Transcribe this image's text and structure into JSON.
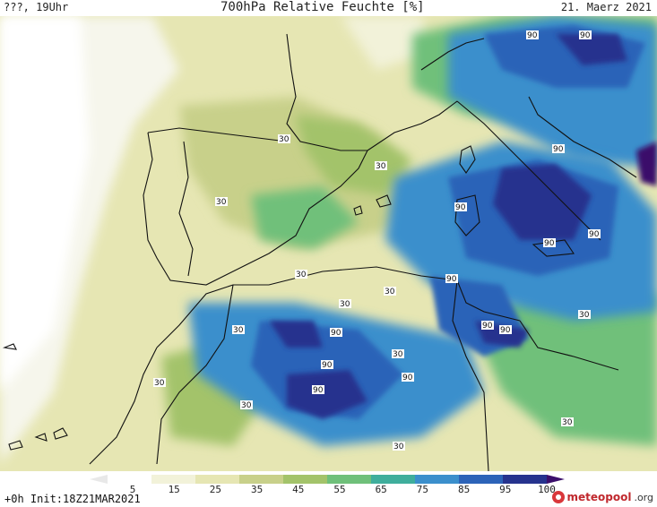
{
  "header": {
    "left": "???, 19Uhr",
    "title": "700hPa Relative Feuchte [%]",
    "date": "21. Maerz 2021"
  },
  "footer": {
    "run_info": "+0h Init:18Z21MAR2021"
  },
  "logo": {
    "brand": "meteopool",
    "tld": ".org"
  },
  "legend": {
    "ticks": [
      "5",
      "15",
      "25",
      "35",
      "45",
      "55",
      "65",
      "75",
      "85",
      "95",
      "100"
    ],
    "colors": [
      "#ffffff",
      "#f2f2d9",
      "#e6e6b3",
      "#c8d08a",
      "#a3c36a",
      "#6fc07a",
      "#3fae9c",
      "#3b8fcc",
      "#2c63b8",
      "#26338e",
      "#3b0f6b"
    ]
  },
  "map": {
    "contour_labels": [
      "30",
      "30",
      "30",
      "30",
      "30",
      "30",
      "30",
      "30",
      "30",
      "30",
      "30",
      "30",
      "30",
      "90",
      "90",
      "90",
      "90",
      "90",
      "90",
      "90",
      "90",
      "90",
      "90",
      "90",
      "90",
      "90"
    ]
  }
}
